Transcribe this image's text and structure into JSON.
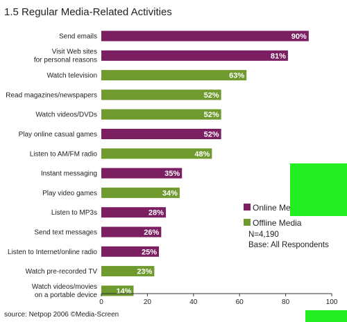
{
  "chart_data": {
    "type": "bar",
    "orientation": "horizontal",
    "title": "1.5  Regular Media-Related Activities",
    "categories": [
      [
        "Send emails"
      ],
      [
        "Visit Web sites",
        "for personal reasons"
      ],
      [
        "Watch television"
      ],
      [
        "Read magazines/newspapers"
      ],
      [
        "Watch videos/DVDs"
      ],
      [
        "Play online casual games"
      ],
      [
        "Listen to AM/FM radio"
      ],
      [
        "Instant messaging"
      ],
      [
        "Play video games"
      ],
      [
        "Listen to MP3s"
      ],
      [
        "Send text messages"
      ],
      [
        "Listen to Internet/online radio"
      ],
      [
        "Watch pre-recorded TV"
      ],
      [
        "Watch videos/movies",
        "on a portable device"
      ]
    ],
    "values": [
      90,
      81,
      63,
      52,
      52,
      52,
      48,
      35,
      34,
      28,
      26,
      25,
      23,
      14
    ],
    "value_labels": [
      "90%",
      "81%",
      "63%",
      "52%",
      "52%",
      "52%",
      "48%",
      "35%",
      "34%",
      "28%",
      "26%",
      "25%",
      "23%",
      "14%"
    ],
    "groups": [
      "online",
      "online",
      "offline",
      "offline",
      "offline",
      "online",
      "offline",
      "online",
      "offline",
      "online",
      "online",
      "online",
      "offline",
      "offline"
    ],
    "series": [
      {
        "key": "online",
        "name": "Online Media",
        "color": "#7b1e62"
      },
      {
        "key": "offline",
        "name": "Offline Media",
        "color": "#6f9a2e"
      }
    ],
    "xlim": [
      0,
      100
    ],
    "xticks": [
      0,
      20,
      40,
      60,
      80,
      100
    ],
    "grid": false,
    "legend_position": "right",
    "notes": [
      "N=4,190",
      "Base:  All Respondents"
    ]
  },
  "source": "source: Netpop 2006 ©Media-Screen",
  "decor_color": "#22ee22"
}
